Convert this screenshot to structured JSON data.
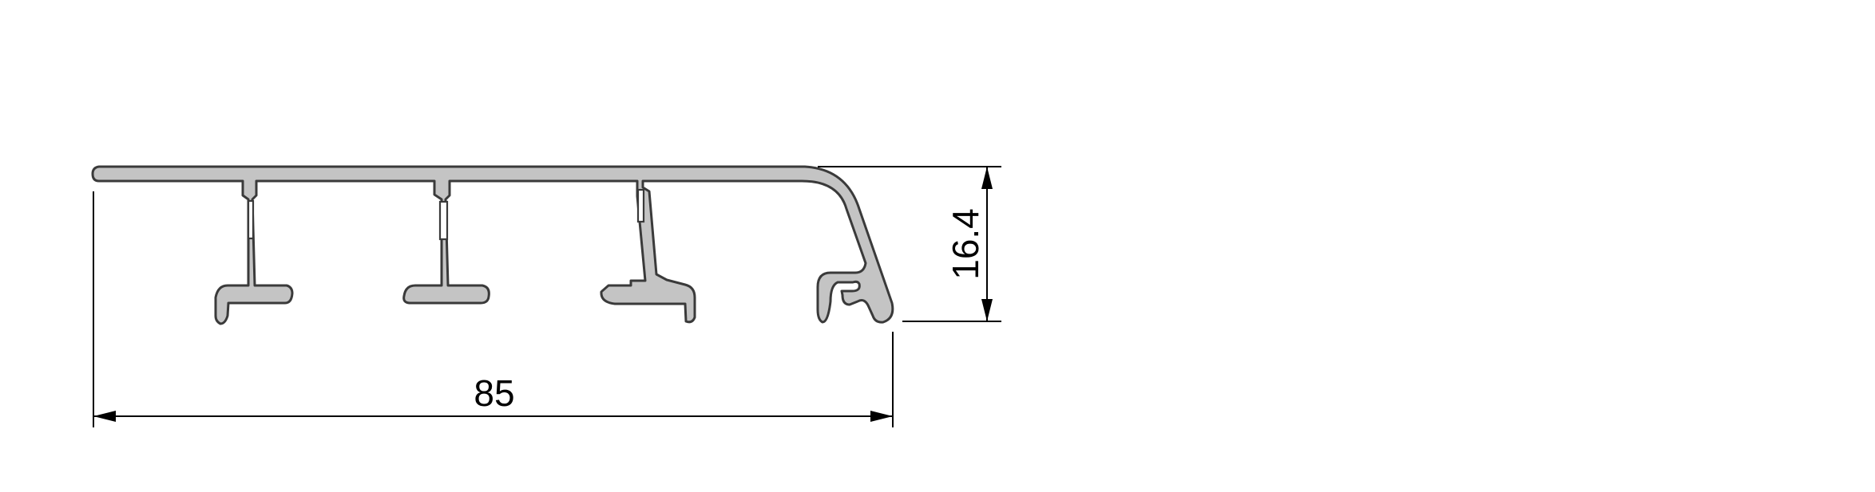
{
  "dimensions": {
    "width_label": "85",
    "height_label": "16.4"
  },
  "colors": {
    "profile_fill": "#c4c4c4",
    "profile_outline": "#3a3a3a",
    "dimension_lines": "#000000",
    "background": "#ffffff"
  }
}
